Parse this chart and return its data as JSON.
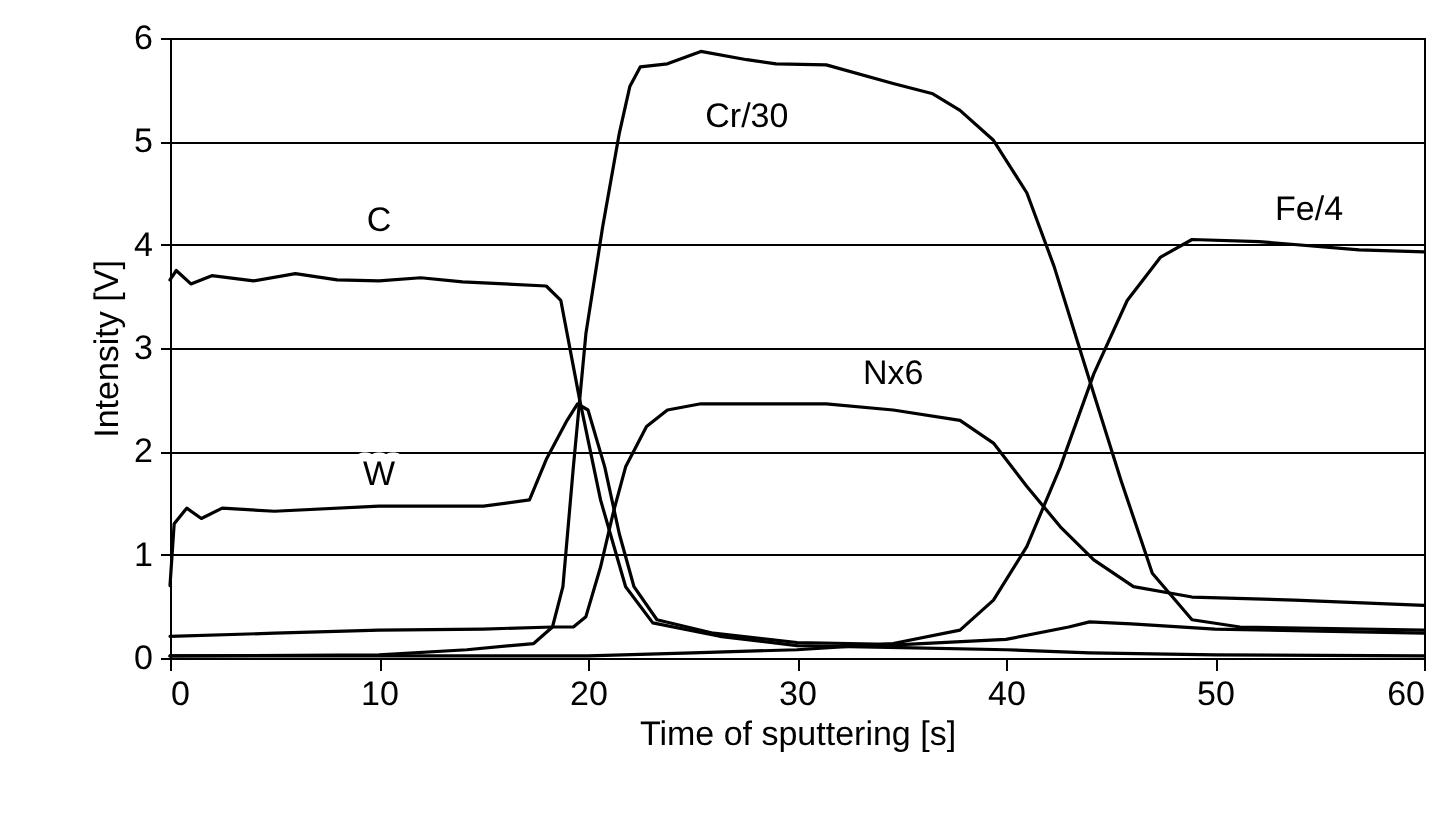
{
  "chart_data": {
    "type": "line",
    "xlabel": "Time of sputtering [s]",
    "ylabel": "Intensity [V]",
    "xlim": [
      0,
      60
    ],
    "ylim": [
      0,
      6
    ],
    "xticks": [
      0,
      10,
      20,
      30,
      40,
      50,
      60
    ],
    "yticks": [
      0,
      1,
      2,
      3,
      4,
      5,
      6
    ],
    "grid": "y",
    "marker": "none",
    "line_style": "solid",
    "series": [
      {
        "color": "#000000",
        "x": [
          0,
          0.3,
          1,
          2,
          4,
          6,
          8,
          10,
          12,
          14,
          16,
          18,
          18.7,
          19.6,
          20.6,
          21.8,
          23.1,
          26.3,
          30,
          35,
          40,
          44,
          50,
          60
        ],
        "values": [
          3.66,
          3.75,
          3.62,
          3.7,
          3.65,
          3.72,
          3.66,
          3.65,
          3.68,
          3.64,
          3.62,
          3.6,
          3.46,
          2.5,
          1.53,
          0.69,
          0.34,
          0.21,
          0.12,
          0.1,
          0.08,
          0.05,
          0.03,
          0.02
        ]
      },
      {
        "color": "#000000",
        "x": [
          0,
          0.2,
          0.8,
          1.5,
          2.5,
          5,
          10,
          15,
          17.2,
          18,
          19,
          19.5,
          20,
          20.8,
          21.5,
          22.2,
          23.3,
          26,
          30,
          35,
          40,
          43,
          44,
          46,
          50,
          55,
          60
        ],
        "values": [
          0.7,
          1.3,
          1.45,
          1.35,
          1.45,
          1.42,
          1.47,
          1.47,
          1.53,
          1.92,
          2.3,
          2.46,
          2.4,
          1.85,
          1.2,
          0.69,
          0.37,
          0.24,
          0.15,
          0.13,
          0.18,
          0.3,
          0.35,
          0.33,
          0.28,
          0.26,
          0.24
        ]
      },
      {
        "color": "#000000",
        "x": [
          0,
          10,
          14.2,
          17.4,
          18.3,
          18.8,
          19.3,
          19.9,
          20.7,
          21.5,
          22,
          22.5,
          23.8,
          25.4,
          27.6,
          29,
          31.4,
          34.6,
          36.5,
          37.8,
          39.4,
          41,
          42.3,
          43.9,
          45.5,
          47,
          48.9,
          51.2,
          60
        ],
        "values": [
          0.02,
          0.03,
          0.08,
          0.14,
          0.3,
          0.69,
          1.85,
          3.14,
          4.17,
          5.08,
          5.53,
          5.72,
          5.75,
          5.87,
          5.79,
          5.75,
          5.74,
          5.56,
          5.46,
          5.3,
          5.01,
          4.5,
          3.79,
          2.75,
          1.72,
          0.82,
          0.37,
          0.3,
          0.27
        ]
      },
      {
        "color": "#000000",
        "x": [
          0,
          5,
          10,
          15,
          18.3,
          19.3,
          19.9,
          20.6,
          21.2,
          21.8,
          22.8,
          23.8,
          25.4,
          29,
          31.4,
          34.6,
          37.8,
          39.4,
          41,
          42.6,
          44.2,
          46.1,
          48.9,
          53.8,
          60
        ],
        "values": [
          0.21,
          0.24,
          0.27,
          0.28,
          0.3,
          0.3,
          0.4,
          0.88,
          1.4,
          1.85,
          2.24,
          2.4,
          2.46,
          2.46,
          2.46,
          2.4,
          2.3,
          2.08,
          1.66,
          1.27,
          0.95,
          0.69,
          0.59,
          0.56,
          0.51
        ]
      },
      {
        "color": "#000000",
        "x": [
          0,
          10,
          20,
          25,
          30,
          34.6,
          37.8,
          39.4,
          41,
          42.6,
          44.2,
          45.8,
          47.4,
          48.9,
          52.1,
          56.9,
          60
        ],
        "values": [
          0.02,
          0.02,
          0.02,
          0.05,
          0.08,
          0.14,
          0.27,
          0.56,
          1.08,
          1.85,
          2.75,
          3.46,
          3.88,
          4.05,
          4.03,
          3.95,
          3.93
        ]
      }
    ],
    "annotations": [
      {
        "text": "C",
        "x": 10,
        "y": 3.65
      },
      {
        "text": "W",
        "x": 10,
        "y": 1.47
      },
      {
        "text": "Cr/30",
        "x": 27.6,
        "y": 5.79
      },
      {
        "text": "Nx6",
        "x": 34.6,
        "y": 2.4
      },
      {
        "text": "Fe/4",
        "x": 54.5,
        "y": 3.99
      }
    ]
  }
}
